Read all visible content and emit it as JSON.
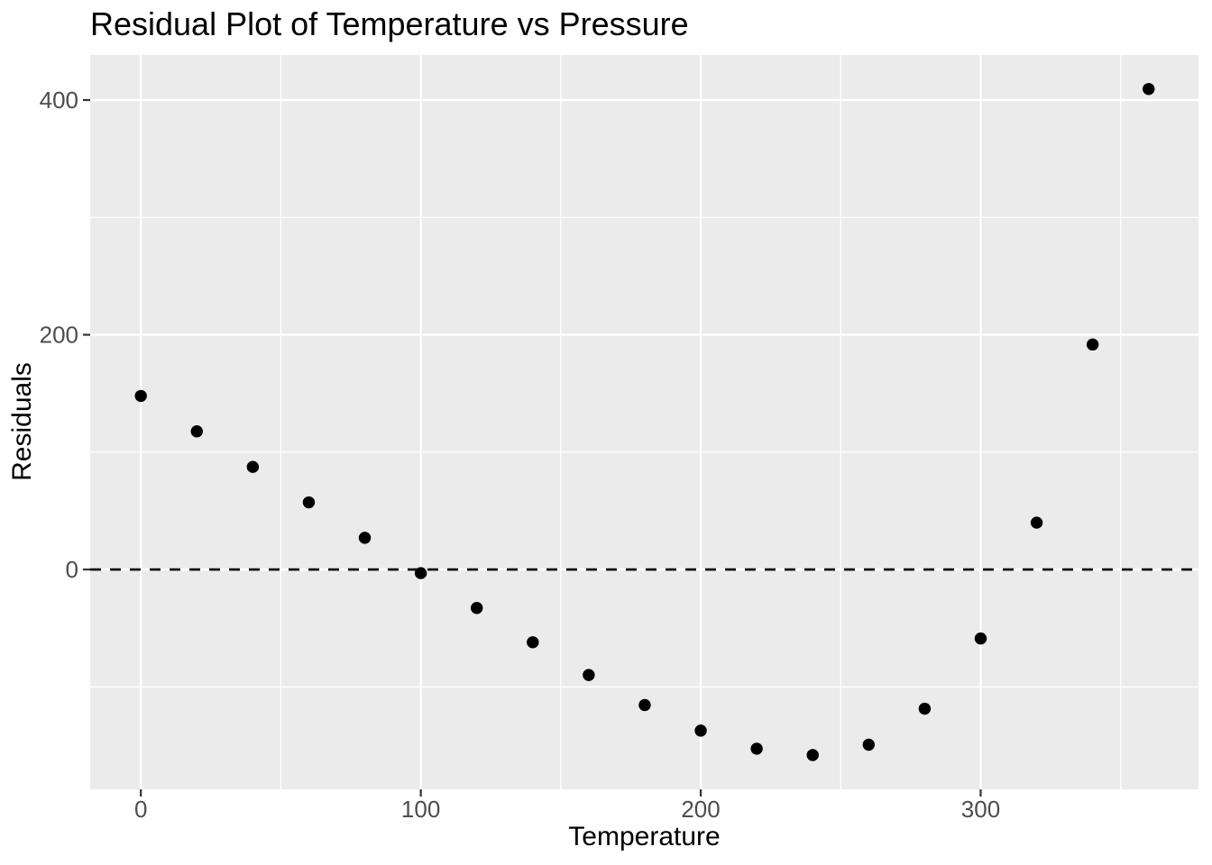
{
  "chart_data": {
    "type": "scatter",
    "title": "Residual Plot of Temperature vs Pressure",
    "xlabel": "Temperature",
    "ylabel": "Residuals",
    "x": [
      0,
      20,
      40,
      60,
      80,
      100,
      120,
      140,
      160,
      180,
      200,
      220,
      240,
      260,
      280,
      300,
      320,
      340,
      360
    ],
    "y": [
      147.9,
      117.7,
      87.4,
      57.2,
      27.0,
      -3.1,
      -32.8,
      -62.0,
      -89.9,
      -115.5,
      -137.3,
      -152.7,
      -158.1,
      -149.3,
      -118.6,
      -58.8,
      39.9,
      191.7,
      409.4
    ],
    "xlim": [
      -18.1,
      377.8
    ],
    "ylim": [
      -187.3,
      438.4
    ],
    "x_ticks": [
      0,
      100,
      200,
      300
    ],
    "y_ticks": [
      0,
      200,
      400
    ],
    "x_minor_ticks": [
      50,
      150,
      250,
      350
    ],
    "y_minor_ticks": [
      -100,
      100,
      300
    ],
    "grid": true,
    "legend": "none",
    "reference_line": {
      "y": 0,
      "style": "dashed",
      "color": "#000000"
    },
    "style": {
      "panel_bg": "#EBEBEB",
      "grid_color": "#FFFFFF",
      "point_color": "#000000",
      "tick_color": "#333333",
      "tick_label_color": "#4D4D4D",
      "axis_title_color": "#000000",
      "title_color": "#000000"
    }
  }
}
